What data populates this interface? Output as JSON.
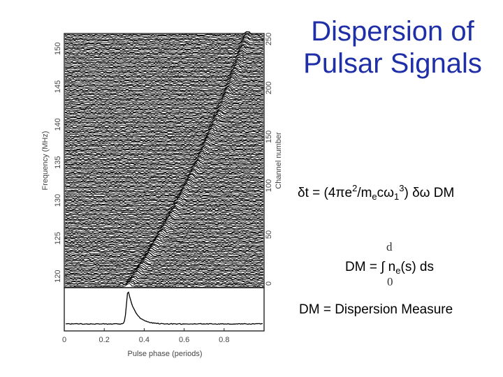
{
  "slide": {
    "title_line1": "Dispersion of",
    "title_line2": "Pulsar Signals",
    "title_color": "#1f2fa8"
  },
  "equations": {
    "delay": {
      "lhs": "δt = (4πe",
      "sup1": "2",
      "mid1": "/m",
      "sub1": "e",
      "mid2": "cω",
      "sub2": "1",
      "sup2": "3",
      "rhs": ") δω DM"
    },
    "dm": {
      "upper_limit": "d",
      "lhs": "DM = ∫ n",
      "sub": "e",
      "rhs": "(s) ds",
      "lower_limit": "0"
    },
    "definition": "DM = Dispersion Measure"
  },
  "chart_data": {
    "type": "line",
    "xlabel": "Pulse phase (periods)",
    "ylabel_left": "Frequency (MHz)",
    "ylabel_right": "Channel number",
    "x_ticks": [
      "0",
      "0.2",
      "0.4",
      "0.6",
      "0.8"
    ],
    "y_ticks_left": [
      "120",
      "125",
      "130",
      "135",
      "140",
      "145",
      "150"
    ],
    "y_ticks_right": [
      "0",
      "50",
      "100",
      "150",
      "200",
      "250"
    ],
    "xlim": [
      0,
      1.0
    ],
    "freq_range_mhz": [
      118.5,
      152
    ],
    "pulse_phase_at_top": 0.92,
    "pulse_phase_at_bottom": 0.32,
    "profile": {
      "peak_phase": 0.32,
      "baseline_phase_range": [
        0,
        1.0
      ]
    }
  }
}
